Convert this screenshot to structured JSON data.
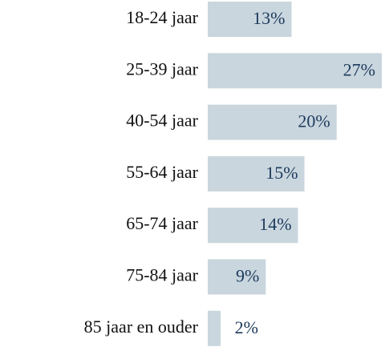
{
  "chart_data": {
    "type": "bar",
    "orientation": "horizontal",
    "categories": [
      "18-24 jaar",
      "25-39 jaar",
      "40-54 jaar",
      "55-64 jaar",
      "65-74 jaar",
      "75-84 jaar",
      "85 jaar en ouder"
    ],
    "values": [
      13,
      27,
      20,
      15,
      14,
      9,
      2
    ],
    "value_labels": [
      "13%",
      "27%",
      "20%",
      "15%",
      "14%",
      "9%",
      "2%"
    ],
    "color": "#c9d6de",
    "xlim": [
      0,
      27
    ]
  }
}
